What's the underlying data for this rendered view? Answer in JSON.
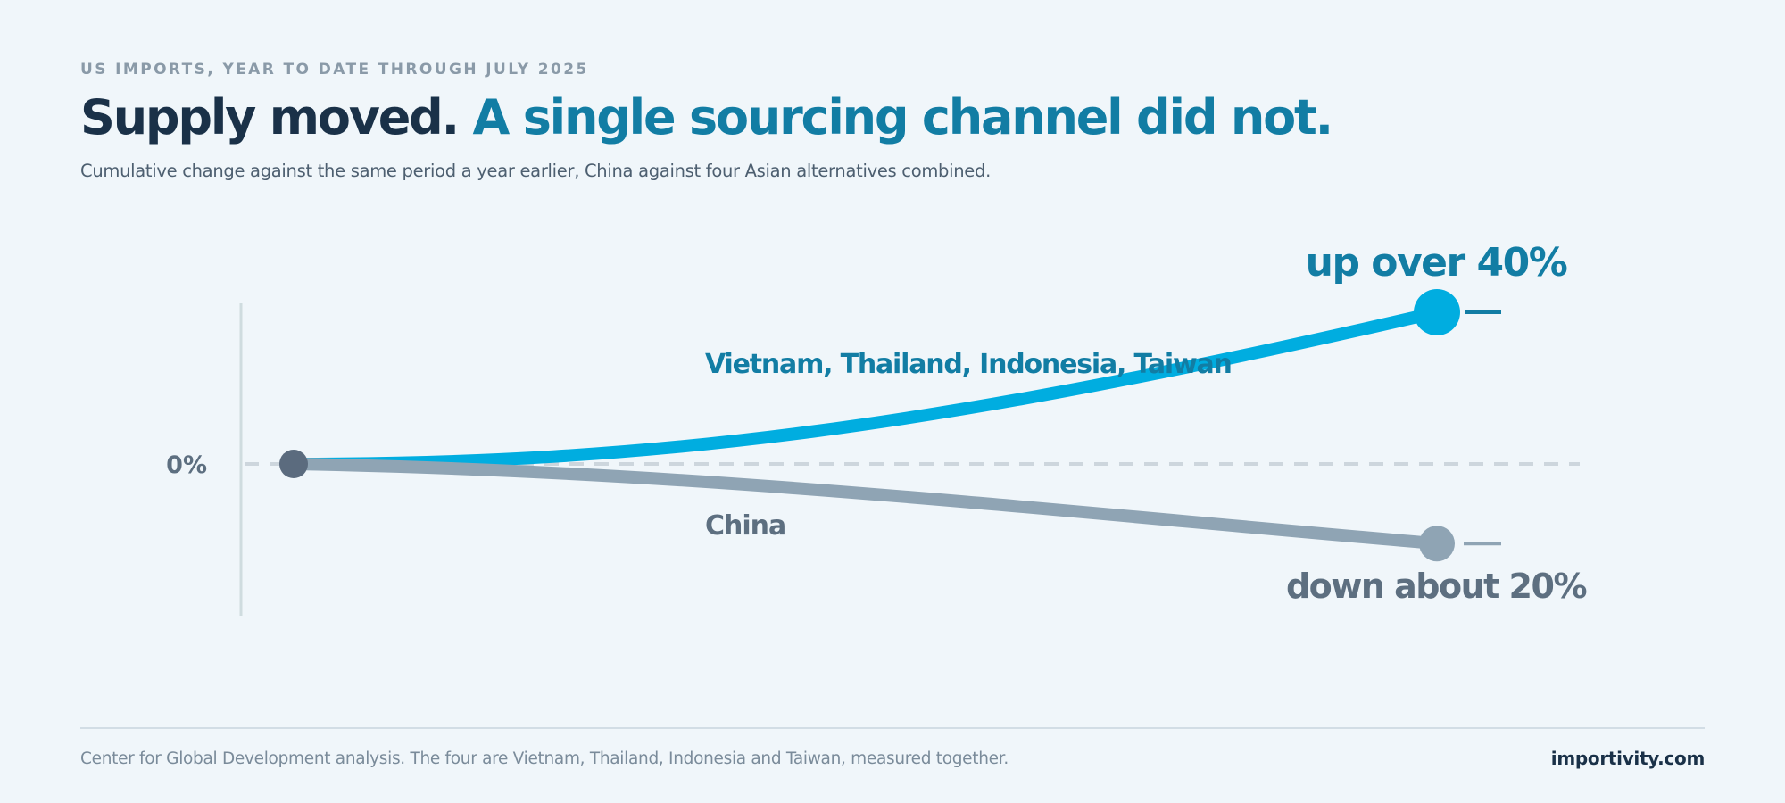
{
  "header": {
    "kicker": "US IMPORTS, YEAR TO DATE THROUGH JULY 2025",
    "title_dark": "Supply moved.",
    "title_accent": "A single sourcing channel did not.",
    "subtitle": "Cumulative change against the same period a year earlier, China against four Asian alternatives combined."
  },
  "chart_data": {
    "type": "line",
    "title": "Supply moved. A single sourcing channel did not.",
    "subtitle": "Cumulative change against the same period a year earlier, China against four Asian alternatives combined.",
    "baseline_label": "0%",
    "baseline_value": 0,
    "grid": false,
    "series": [
      {
        "name": "Vietnam, Thailand, Indonesia, Taiwan",
        "start_value": 0,
        "end_value": 40,
        "end_label": "up over 40%",
        "color": "#00ade0",
        "label_color": "#127da4"
      },
      {
        "name": "China",
        "start_value": 0,
        "end_value": -21,
        "end_label": "down about 20%",
        "color": "#8fa4b4",
        "label_color": "#5d6f80"
      }
    ],
    "start_marker_color": "#5b6b7e",
    "ylim": [
      -40,
      48
    ]
  },
  "footer": {
    "source": "Center for Global Development analysis. The four are Vietnam, Thailand, Indonesia and Taiwan, measured together.",
    "brand": "importivity.com"
  }
}
